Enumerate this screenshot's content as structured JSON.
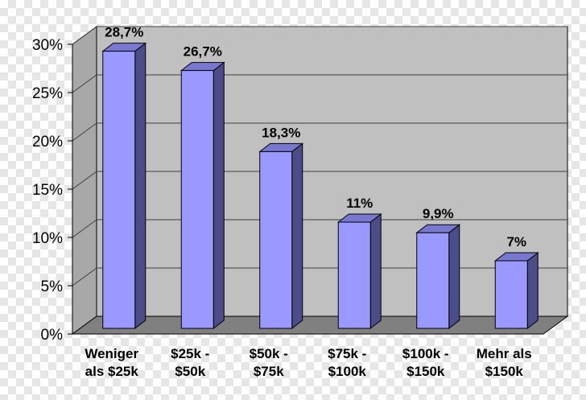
{
  "chart_data": {
    "type": "bar",
    "categories": [
      [
        "Weniger",
        "als $25k"
      ],
      [
        "$25k -",
        "$50k"
      ],
      [
        "$50k -",
        "$75k"
      ],
      [
        "$75k -",
        "$100k"
      ],
      [
        "$100k -",
        "$150k"
      ],
      [
        "Mehr als",
        "$150k"
      ]
    ],
    "values": [
      28.7,
      26.7,
      18.3,
      11,
      9.9,
      7
    ],
    "data_labels": [
      "28,7%",
      "26,7%",
      "18,3%",
      "11%",
      "9,9%",
      "7%"
    ],
    "y_ticks": [
      "0%",
      "5%",
      "10%",
      "15%",
      "20%",
      "25%",
      "30%"
    ],
    "y_tick_values": [
      0,
      5,
      10,
      15,
      20,
      25,
      30
    ],
    "ylim": [
      0,
      30
    ],
    "grid": true,
    "legend": "none",
    "colors": {
      "bar_front": "#9999ff",
      "bar_side": "#4c4c88",
      "bar_top": "#7878d0",
      "wall": "#c0c0c0",
      "floor": "#808080",
      "grid": "#404040"
    }
  }
}
